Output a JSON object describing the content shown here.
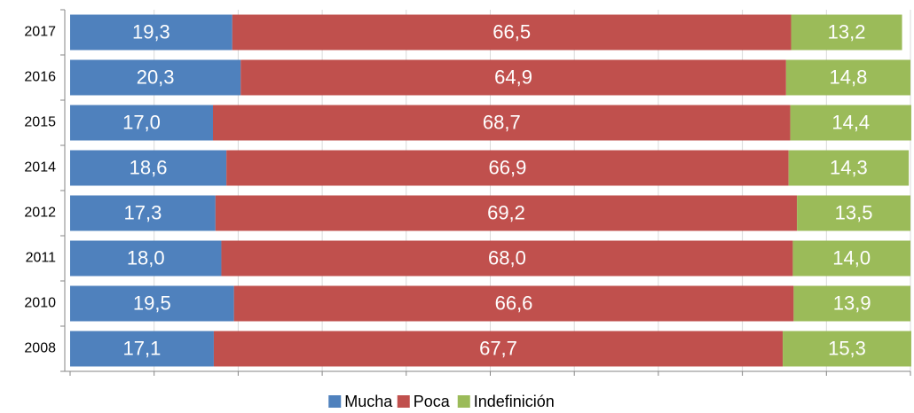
{
  "chart_data": {
    "type": "stacked_bar_horizontal",
    "categories": [
      "2017",
      "2016",
      "2015",
      "2014",
      "2012",
      "2011",
      "2010",
      "2008"
    ],
    "series": [
      {
        "name": "Mucha",
        "color": "#4f81bd",
        "values": [
          19.3,
          20.3,
          17.0,
          18.6,
          17.3,
          18.0,
          19.5,
          17.1
        ],
        "value_labels": [
          "19,3",
          "20,3",
          "17,0",
          "18,6",
          "17,3",
          "18,0",
          "19,5",
          "17,1"
        ]
      },
      {
        "name": "Poca",
        "color": "#c0504d",
        "values": [
          66.5,
          64.9,
          68.7,
          66.9,
          69.2,
          68.0,
          66.6,
          67.7
        ],
        "value_labels": [
          "66,5",
          "64,9",
          "68,7",
          "66,9",
          "69,2",
          "68,0",
          "66,6",
          "67,7"
        ]
      },
      {
        "name": "Indefinición",
        "color": "#9bbb59",
        "values": [
          13.2,
          14.8,
          14.4,
          14.3,
          13.5,
          14.0,
          13.9,
          15.3
        ],
        "value_labels": [
          "13,2",
          "14,8",
          "14,4",
          "14,3",
          "13,5",
          "14,0",
          "13,9",
          "15,3"
        ]
      }
    ],
    "xlim": [
      0,
      100
    ],
    "xticks": [
      0,
      10,
      20,
      30,
      40,
      50,
      60,
      70,
      80,
      90,
      100
    ],
    "grid": true,
    "legend": "bottom"
  }
}
